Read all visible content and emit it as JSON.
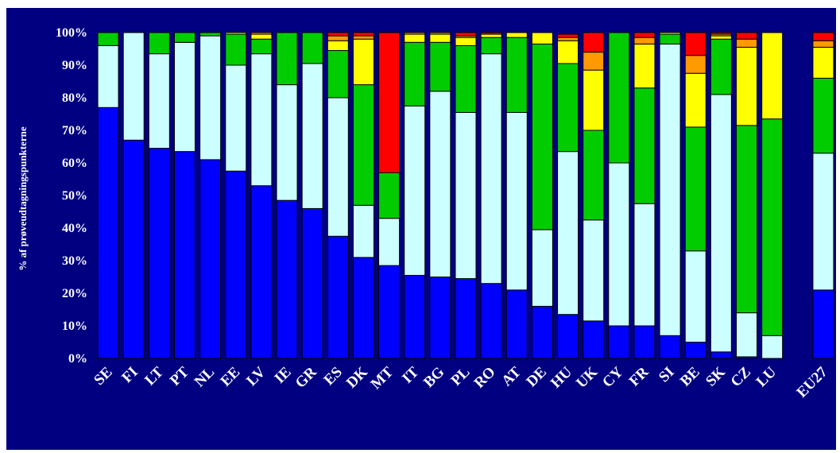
{
  "chart_data": {
    "type": "bar",
    "stacked": true,
    "ylabel": "% af prøveudtagningspunkterne",
    "ylim": [
      0,
      100
    ],
    "yticks": [
      "0%",
      "10%",
      "20%",
      "30%",
      "40%",
      "50%",
      "60%",
      "70%",
      "80%",
      "90%",
      "100%"
    ],
    "background": "#000080",
    "categories": [
      "SE",
      "FI",
      "LT",
      "PT",
      "NL",
      "EE",
      "LV",
      "IE",
      "GR",
      "ES",
      "DK",
      "MT",
      "IT",
      "BG",
      "PL",
      "RO",
      "AT",
      "DE",
      "HU",
      "UK",
      "CY",
      "FR",
      "SI",
      "BE",
      "SK",
      "CZ",
      "LU",
      "",
      "EU27"
    ],
    "series": [
      {
        "color": "#0000FF",
        "values": [
          77,
          67,
          64.5,
          63.5,
          61,
          57.5,
          53,
          48.5,
          46,
          37.5,
          31,
          28.5,
          25.5,
          25,
          24.5,
          23,
          21,
          16,
          13.5,
          11.5,
          10,
          10,
          7,
          5,
          2,
          0.5,
          0,
          0,
          21
        ]
      },
      {
        "color": "#CCFFFF",
        "values": [
          19,
          33,
          29,
          33.5,
          38,
          32.5,
          40.5,
          35.5,
          44.5,
          42.5,
          16,
          14.5,
          52,
          57,
          51,
          70.5,
          54.5,
          23.5,
          50,
          31,
          50,
          37.5,
          89.5,
          28,
          79,
          13.5,
          7,
          0,
          42
        ]
      },
      {
        "color": "#00CC00",
        "values": [
          4,
          0,
          6.5,
          3,
          1,
          9.5,
          4.5,
          16,
          9.5,
          14.5,
          37,
          14,
          19.5,
          15,
          20.5,
          5,
          23,
          57,
          27,
          27.5,
          40,
          35.5,
          3,
          38,
          17,
          57.5,
          66.5,
          0,
          23
        ]
      },
      {
        "color": "#FFFF00",
        "values": [
          0,
          0,
          0,
          0,
          0,
          0.5,
          1.5,
          0,
          0,
          3,
          14,
          0,
          2.5,
          2.5,
          2.5,
          1,
          1.5,
          3.5,
          7,
          18.5,
          0,
          13.5,
          0.5,
          16.5,
          1,
          24,
          26.5,
          0,
          9.5
        ]
      },
      {
        "color": "#FF9900",
        "values": [
          0,
          0,
          0,
          0,
          0,
          0,
          0.5,
          0,
          0,
          1.5,
          1,
          0,
          0.5,
          0.5,
          0.5,
          0,
          0,
          0,
          1,
          5.5,
          0,
          2,
          0,
          5.5,
          0.5,
          2.5,
          0,
          0,
          2
        ]
      },
      {
        "color": "#FF0000",
        "values": [
          0,
          0,
          0,
          0,
          0,
          0,
          0,
          0,
          0,
          1,
          1,
          43,
          0,
          0,
          1,
          0.5,
          0,
          0,
          1,
          6,
          0,
          1.5,
          0,
          7,
          0.5,
          2,
          0,
          0,
          2.5
        ]
      }
    ]
  }
}
